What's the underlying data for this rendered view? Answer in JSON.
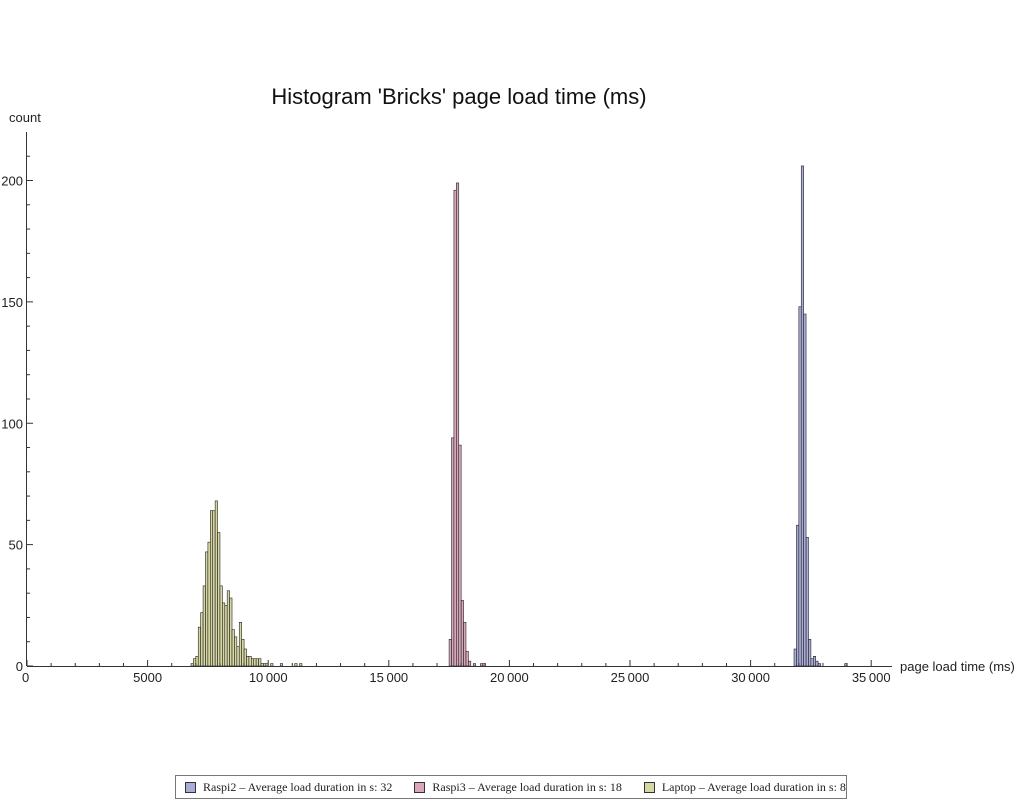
{
  "chart_data": {
    "type": "bar",
    "title": "Histogram 'Bricks' page load time (ms)",
    "xlabel": "page load time (ms)",
    "ylabel": "count",
    "xlim": [
      0,
      36000
    ],
    "ylim": [
      0,
      220
    ],
    "bin_width": 100,
    "x_ticks": [
      {
        "value": 0,
        "label": "0"
      },
      {
        "value": 5000,
        "label": "5000"
      },
      {
        "value": 10000,
        "label": "10 000"
      },
      {
        "value": 15000,
        "label": "15 000"
      },
      {
        "value": 20000,
        "label": "20 000"
      },
      {
        "value": 25000,
        "label": "25 000"
      },
      {
        "value": 30000,
        "label": "30 000"
      },
      {
        "value": 35000,
        "label": "35 000"
      }
    ],
    "y_ticks": [
      {
        "value": 0,
        "label": "0"
      },
      {
        "value": 50,
        "label": "50"
      },
      {
        "value": 100,
        "label": "100"
      },
      {
        "value": 150,
        "label": "150"
      },
      {
        "value": 200,
        "label": "200"
      }
    ],
    "legend_position": "bottom",
    "series": [
      {
        "name": "Raspi2 – Average load duration in s: 32",
        "color": "#a9acd9",
        "bins": [
          {
            "x": 31800,
            "count": 7
          },
          {
            "x": 31900,
            "count": 58
          },
          {
            "x": 32000,
            "count": 148
          },
          {
            "x": 32100,
            "count": 206
          },
          {
            "x": 32200,
            "count": 145
          },
          {
            "x": 32300,
            "count": 53
          },
          {
            "x": 32400,
            "count": 11
          },
          {
            "x": 32500,
            "count": 3
          },
          {
            "x": 32600,
            "count": 4
          },
          {
            "x": 32700,
            "count": 2
          },
          {
            "x": 32800,
            "count": 1
          },
          {
            "x": 33900,
            "count": 1
          }
        ]
      },
      {
        "name": "Raspi3 – Average load duration in s: 18",
        "color": "#d9a7bb",
        "bins": [
          {
            "x": 17500,
            "count": 11
          },
          {
            "x": 17600,
            "count": 94
          },
          {
            "x": 17700,
            "count": 196
          },
          {
            "x": 17800,
            "count": 199
          },
          {
            "x": 17900,
            "count": 91
          },
          {
            "x": 18000,
            "count": 27
          },
          {
            "x": 18100,
            "count": 18
          },
          {
            "x": 18200,
            "count": 6
          },
          {
            "x": 18300,
            "count": 2
          },
          {
            "x": 18500,
            "count": 1
          },
          {
            "x": 18800,
            "count": 1
          },
          {
            "x": 18900,
            "count": 1
          }
        ]
      },
      {
        "name": "Laptop – Average load duration in s: 8",
        "color": "#d7d7a2",
        "bins": [
          {
            "x": 6800,
            "count": 1
          },
          {
            "x": 6900,
            "count": 3
          },
          {
            "x": 7000,
            "count": 4
          },
          {
            "x": 7100,
            "count": 16
          },
          {
            "x": 7200,
            "count": 22
          },
          {
            "x": 7300,
            "count": 33
          },
          {
            "x": 7400,
            "count": 47
          },
          {
            "x": 7500,
            "count": 51
          },
          {
            "x": 7600,
            "count": 64
          },
          {
            "x": 7700,
            "count": 64
          },
          {
            "x": 7800,
            "count": 68
          },
          {
            "x": 7900,
            "count": 55
          },
          {
            "x": 8000,
            "count": 33
          },
          {
            "x": 8100,
            "count": 26
          },
          {
            "x": 8200,
            "count": 25
          },
          {
            "x": 8300,
            "count": 31
          },
          {
            "x": 8400,
            "count": 28
          },
          {
            "x": 8500,
            "count": 15
          },
          {
            "x": 8600,
            "count": 12
          },
          {
            "x": 8700,
            "count": 8
          },
          {
            "x": 8800,
            "count": 18
          },
          {
            "x": 8900,
            "count": 11
          },
          {
            "x": 9000,
            "count": 7
          },
          {
            "x": 9100,
            "count": 4
          },
          {
            "x": 9200,
            "count": 4
          },
          {
            "x": 9300,
            "count": 3
          },
          {
            "x": 9400,
            "count": 3
          },
          {
            "x": 9500,
            "count": 3
          },
          {
            "x": 9600,
            "count": 3
          },
          {
            "x": 9700,
            "count": 1
          },
          {
            "x": 9800,
            "count": 1
          },
          {
            "x": 9900,
            "count": 1
          },
          {
            "x": 10100,
            "count": 1
          },
          {
            "x": 10500,
            "count": 1
          },
          {
            "x": 11100,
            "count": 1
          },
          {
            "x": 11300,
            "count": 1
          }
        ]
      }
    ]
  }
}
